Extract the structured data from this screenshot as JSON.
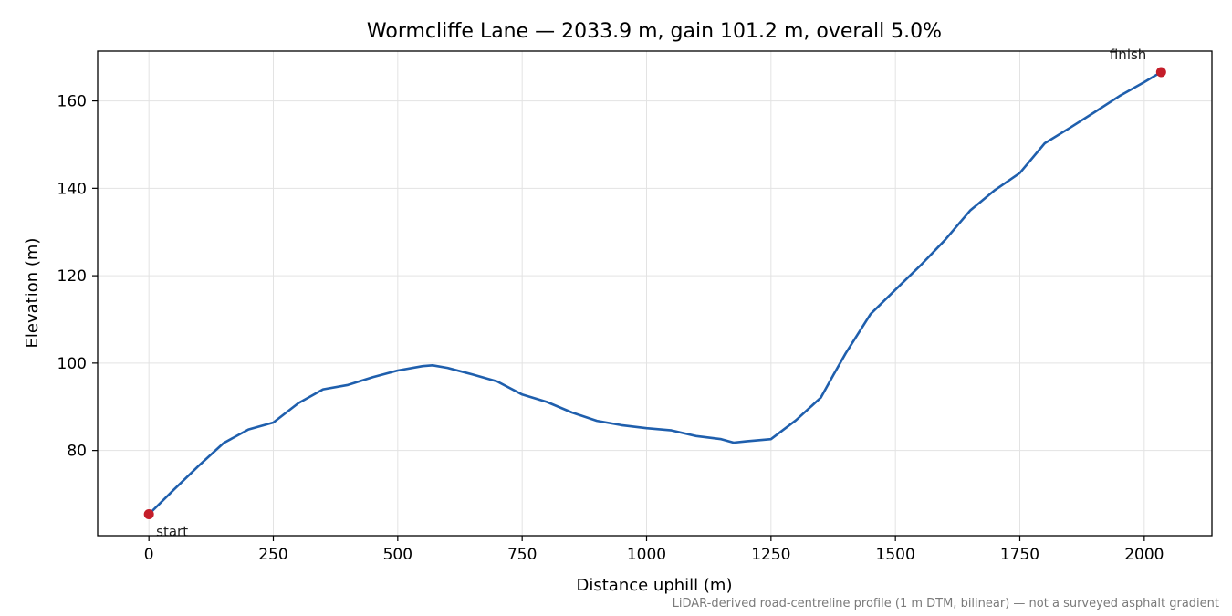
{
  "colors": {
    "line": "#1f5fad",
    "marker": "#c41e2a",
    "grid": "#e3e3e3",
    "axis": "#000000",
    "footnote": "#7a7a7a"
  },
  "footnote": "LiDAR-derived road-centreline profile (1 m DTM, bilinear) — not a surveyed asphalt gradient",
  "chart_data": {
    "type": "line",
    "title": "Wormcliffe Lane — 2033.9 m, gain 101.2 m, overall 5.0%",
    "xlabel": "Distance uphill (m)",
    "ylabel": "Elevation (m)",
    "xlim": [
      -103,
      2136
    ],
    "ylim": [
      60.5,
      171.4
    ],
    "xticks": [
      0,
      250,
      500,
      750,
      1000,
      1250,
      1500,
      1750,
      2000
    ],
    "yticks": [
      80,
      100,
      120,
      140,
      160
    ],
    "grid": true,
    "series": [
      {
        "x": [
          0,
          50,
          100,
          150,
          200,
          250,
          300,
          350,
          400,
          450,
          500,
          550,
          570,
          600,
          650,
          700,
          750,
          800,
          850,
          900,
          950,
          1000,
          1050,
          1100,
          1150,
          1175,
          1200,
          1250,
          1300,
          1350,
          1375,
          1400,
          1450,
          1500,
          1550,
          1600,
          1650,
          1700,
          1750,
          1800,
          1850,
          1900,
          1950,
          2000,
          2033.9
        ],
        "y": [
          65.4,
          71,
          76.5,
          81.7,
          84.8,
          86.4,
          90.8,
          94,
          95,
          96.8,
          98.3,
          99.3,
          99.5,
          98.9,
          97.4,
          95.8,
          92.8,
          91.1,
          88.7,
          86.8,
          85.8,
          85.1,
          84.6,
          83.3,
          82.6,
          81.8,
          82.1,
          82.6,
          86.9,
          92.1,
          97.2,
          102.2,
          111.2,
          116.8,
          122.3,
          128.2,
          134.9,
          139.6,
          143.5,
          150.3,
          153.8,
          157.4,
          161.1,
          164.3,
          166.6
        ]
      }
    ],
    "points": [
      {
        "label": "start",
        "x": 0,
        "y": 65.4
      },
      {
        "label": "finish",
        "x": 2033.9,
        "y": 166.6
      }
    ]
  }
}
